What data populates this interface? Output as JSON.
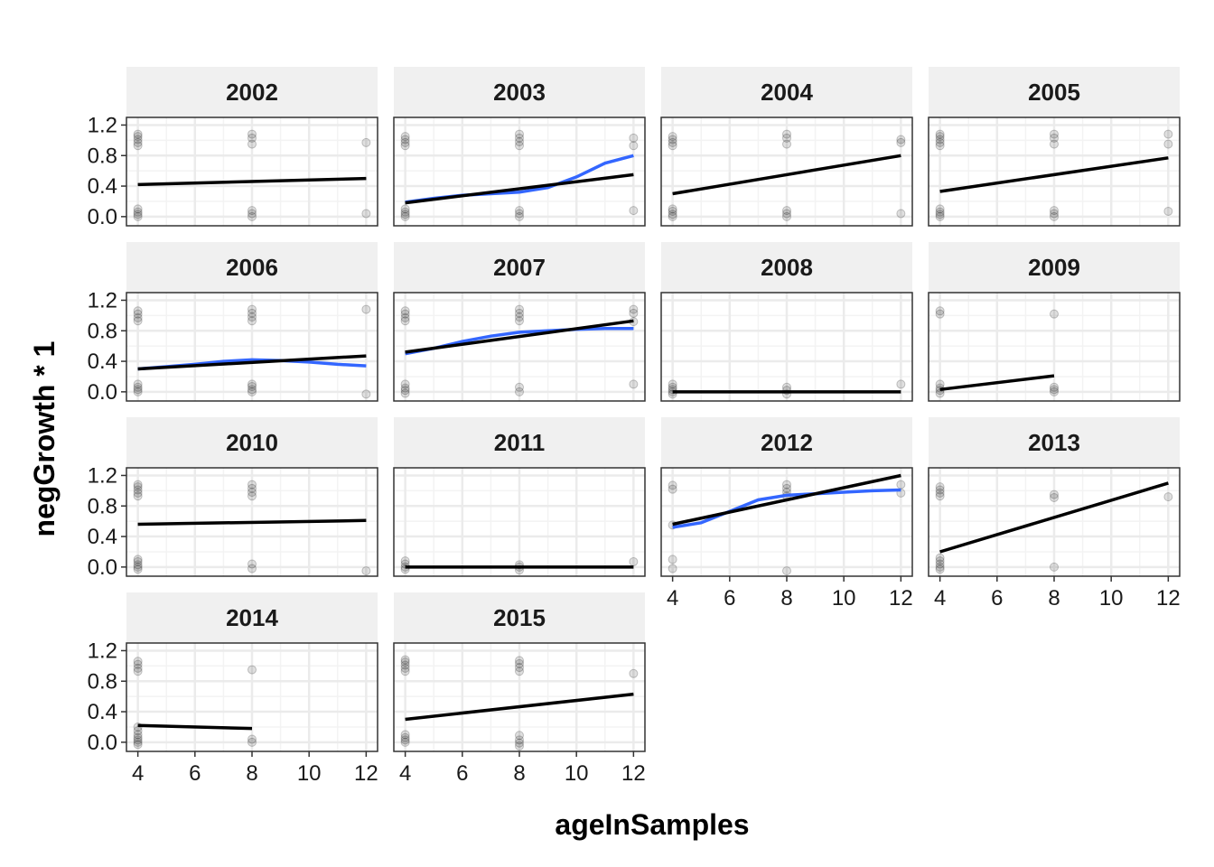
{
  "chart_data": {
    "type": "scatter",
    "xlabel": "ageInSamples",
    "ylabel": "negGrowth * 1",
    "xlim": [
      3.6,
      12.4
    ],
    "ylim": [
      -0.12,
      1.3
    ],
    "x_ticks": [
      4,
      6,
      8,
      10,
      12
    ],
    "x_tick_labels": [
      "4",
      "6",
      "8",
      "10",
      "12"
    ],
    "y_ticks": [
      0,
      0.4,
      0.8,
      1.2
    ],
    "y_tick_labels": [
      "0.0",
      "0.4",
      "0.8",
      "1.2"
    ],
    "grid": true,
    "layout": {
      "rows": 4,
      "cols": 4
    },
    "series_colors": {
      "points": "#000000",
      "linear_fit": "#000000",
      "smooth_fit": "#3366ff"
    },
    "panels": [
      {
        "label": "2002",
        "points": [
          [
            4,
            0
          ],
          [
            4,
            0.03
          ],
          [
            4,
            0.06
          ],
          [
            4,
            0.1
          ],
          [
            4,
            0.93
          ],
          [
            4,
            0.97
          ],
          [
            4,
            1.01
          ],
          [
            4,
            1.05
          ],
          [
            4,
            1.08
          ],
          [
            8,
            0
          ],
          [
            8,
            0.04
          ],
          [
            8,
            0.08
          ],
          [
            8,
            0.95
          ],
          [
            8,
            1.03
          ],
          [
            8,
            1.08
          ],
          [
            12,
            0.04
          ],
          [
            12,
            0.97
          ]
        ],
        "linear": [
          [
            4,
            0.42
          ],
          [
            12,
            0.5
          ]
        ],
        "smooth": null
      },
      {
        "label": "2003",
        "points": [
          [
            4,
            0
          ],
          [
            4,
            0.03
          ],
          [
            4,
            0.06
          ],
          [
            4,
            0.1
          ],
          [
            4,
            0.93
          ],
          [
            4,
            0.97
          ],
          [
            4,
            1.01
          ],
          [
            4,
            1.05
          ],
          [
            8,
            0
          ],
          [
            8,
            0.04
          ],
          [
            8,
            0.08
          ],
          [
            8,
            0.93
          ],
          [
            8,
            0.98
          ],
          [
            8,
            1.03
          ],
          [
            8,
            1.08
          ],
          [
            12,
            0.08
          ],
          [
            12,
            0.93
          ],
          [
            12,
            1.03
          ]
        ],
        "linear": [
          [
            4,
            0.18
          ],
          [
            12,
            0.55
          ]
        ],
        "smooth": [
          [
            4,
            0.19
          ],
          [
            5,
            0.24
          ],
          [
            6,
            0.28
          ],
          [
            7,
            0.3
          ],
          [
            8,
            0.32
          ],
          [
            9,
            0.38
          ],
          [
            10,
            0.52
          ],
          [
            11,
            0.7
          ],
          [
            12,
            0.8
          ]
        ]
      },
      {
        "label": "2004",
        "points": [
          [
            4,
            0
          ],
          [
            4,
            0.03
          ],
          [
            4,
            0.07
          ],
          [
            4,
            0.1
          ],
          [
            4,
            0.93
          ],
          [
            4,
            0.97
          ],
          [
            4,
            1.01
          ],
          [
            4,
            1.05
          ],
          [
            8,
            0
          ],
          [
            8,
            0.04
          ],
          [
            8,
            0.08
          ],
          [
            8,
            0.95
          ],
          [
            8,
            1.03
          ],
          [
            8,
            1.08
          ],
          [
            12,
            0.04
          ],
          [
            12,
            0.97
          ],
          [
            12,
            1.01
          ]
        ],
        "linear": [
          [
            4,
            0.3
          ],
          [
            12,
            0.8
          ]
        ],
        "smooth": null
      },
      {
        "label": "2005",
        "points": [
          [
            4,
            0
          ],
          [
            4,
            0.03
          ],
          [
            4,
            0.06
          ],
          [
            4,
            0.1
          ],
          [
            4,
            0.93
          ],
          [
            4,
            0.97
          ],
          [
            4,
            1.01
          ],
          [
            4,
            1.05
          ],
          [
            4,
            1.08
          ],
          [
            8,
            0
          ],
          [
            8,
            0.04
          ],
          [
            8,
            0.08
          ],
          [
            8,
            0.95
          ],
          [
            8,
            1.03
          ],
          [
            8,
            1.08
          ],
          [
            12,
            0.07
          ],
          [
            12,
            0.95
          ],
          [
            12,
            1.08
          ]
        ],
        "linear": [
          [
            4,
            0.33
          ],
          [
            12,
            0.77
          ]
        ],
        "smooth": null
      },
      {
        "label": "2006",
        "points": [
          [
            4,
            0
          ],
          [
            4,
            0.03
          ],
          [
            4,
            0.06
          ],
          [
            4,
            0.1
          ],
          [
            4,
            0.93
          ],
          [
            4,
            0.97
          ],
          [
            4,
            1.02
          ],
          [
            4,
            1.06
          ],
          [
            8,
            0
          ],
          [
            8,
            0.03
          ],
          [
            8,
            0.07
          ],
          [
            8,
            0.1
          ],
          [
            8,
            0.93
          ],
          [
            8,
            0.98
          ],
          [
            8,
            1.03
          ],
          [
            8,
            1.08
          ],
          [
            12,
            -0.03
          ],
          [
            12,
            1.08
          ]
        ],
        "linear": [
          [
            4,
            0.3
          ],
          [
            12,
            0.47
          ]
        ],
        "smooth": [
          [
            4,
            0.3
          ],
          [
            5,
            0.33
          ],
          [
            6,
            0.36
          ],
          [
            7,
            0.4
          ],
          [
            8,
            0.42
          ],
          [
            9,
            0.41
          ],
          [
            10,
            0.39
          ],
          [
            11,
            0.36
          ],
          [
            12,
            0.34
          ]
        ]
      },
      {
        "label": "2007",
        "points": [
          [
            4,
            -0.02
          ],
          [
            4,
            0.02
          ],
          [
            4,
            0.05
          ],
          [
            4,
            0.1
          ],
          [
            4,
            0.93
          ],
          [
            4,
            0.97
          ],
          [
            4,
            1.02
          ],
          [
            4,
            1.06
          ],
          [
            8,
            0
          ],
          [
            8,
            0.06
          ],
          [
            8,
            0.93
          ],
          [
            8,
            0.98
          ],
          [
            8,
            1.03
          ],
          [
            8,
            1.08
          ],
          [
            12,
            0.1
          ],
          [
            12,
            0.92
          ],
          [
            12,
            1.03
          ],
          [
            12,
            1.08
          ]
        ],
        "linear": [
          [
            4,
            0.52
          ],
          [
            12,
            0.93
          ]
        ],
        "smooth": [
          [
            4,
            0.5
          ],
          [
            5,
            0.57
          ],
          [
            6,
            0.66
          ],
          [
            7,
            0.73
          ],
          [
            8,
            0.78
          ],
          [
            9,
            0.8
          ],
          [
            10,
            0.82
          ],
          [
            11,
            0.83
          ],
          [
            12,
            0.83
          ]
        ]
      },
      {
        "label": "2008",
        "points": [
          [
            4,
            -0.03
          ],
          [
            4,
            0
          ],
          [
            4,
            0.03
          ],
          [
            4,
            0.06
          ],
          [
            4,
            0.1
          ],
          [
            8,
            -0.03
          ],
          [
            8,
            0.02
          ],
          [
            8,
            0.06
          ],
          [
            12,
            0.1
          ]
        ],
        "linear": [
          [
            4,
            0
          ],
          [
            12,
            0
          ]
        ],
        "smooth": null
      },
      {
        "label": "2009",
        "points": [
          [
            4,
            -0.02
          ],
          [
            4,
            0.02
          ],
          [
            4,
            0.05
          ],
          [
            4,
            0.1
          ],
          [
            4,
            1.02
          ],
          [
            4,
            1.06
          ],
          [
            8,
            0
          ],
          [
            8,
            0.03
          ],
          [
            8,
            0.06
          ],
          [
            8,
            1.02
          ]
        ],
        "linear": [
          [
            4,
            0.03
          ],
          [
            8,
            0.21
          ]
        ],
        "smooth": null
      },
      {
        "label": "2010",
        "points": [
          [
            4,
            -0.03
          ],
          [
            4,
            0
          ],
          [
            4,
            0.03
          ],
          [
            4,
            0.07
          ],
          [
            4,
            0.1
          ],
          [
            4,
            0.93
          ],
          [
            4,
            0.97
          ],
          [
            4,
            1.01
          ],
          [
            4,
            1.05
          ],
          [
            4,
            1.08
          ],
          [
            8,
            -0.02
          ],
          [
            8,
            0.04
          ],
          [
            8,
            0.93
          ],
          [
            8,
            0.98
          ],
          [
            8,
            1.03
          ],
          [
            8,
            1.08
          ],
          [
            12,
            -0.05
          ]
        ],
        "linear": [
          [
            4,
            0.56
          ],
          [
            12,
            0.61
          ]
        ],
        "smooth": null
      },
      {
        "label": "2011",
        "points": [
          [
            4,
            -0.03
          ],
          [
            4,
            0
          ],
          [
            4,
            0.04
          ],
          [
            4,
            0.08
          ],
          [
            8,
            -0.04
          ],
          [
            8,
            0
          ],
          [
            8,
            0.03
          ],
          [
            12,
            0.07
          ]
        ],
        "linear": [
          [
            4,
            0
          ],
          [
            12,
            0
          ]
        ],
        "smooth": null
      },
      {
        "label": "2012",
        "points": [
          [
            4,
            -0.02
          ],
          [
            4,
            0.1
          ],
          [
            4,
            0.55
          ],
          [
            4,
            1.02
          ],
          [
            4,
            1.07
          ],
          [
            8,
            -0.05
          ],
          [
            8,
            0.93
          ],
          [
            8,
            0.98
          ],
          [
            8,
            1.03
          ],
          [
            8,
            1.08
          ],
          [
            12,
            0.97
          ],
          [
            12,
            1.08
          ]
        ],
        "linear": [
          [
            4,
            0.56
          ],
          [
            12,
            1.2
          ]
        ],
        "smooth": [
          [
            4,
            0.52
          ],
          [
            5,
            0.58
          ],
          [
            6,
            0.73
          ],
          [
            7,
            0.88
          ],
          [
            8,
            0.94
          ],
          [
            9,
            0.96
          ],
          [
            10,
            0.98
          ],
          [
            11,
            1
          ],
          [
            12,
            1.01
          ]
        ]
      },
      {
        "label": "2013",
        "points": [
          [
            4,
            -0.03
          ],
          [
            4,
            0
          ],
          [
            4,
            0.04
          ],
          [
            4,
            0.08
          ],
          [
            4,
            0.12
          ],
          [
            4,
            0.93
          ],
          [
            4,
            0.97
          ],
          [
            4,
            1.01
          ],
          [
            4,
            1.05
          ],
          [
            8,
            0
          ],
          [
            8,
            0.91
          ],
          [
            8,
            0.95
          ],
          [
            12,
            0.92
          ]
        ],
        "linear": [
          [
            4,
            0.2
          ],
          [
            12,
            1.1
          ]
        ],
        "smooth": null
      },
      {
        "label": "2014",
        "points": [
          [
            4,
            -0.03
          ],
          [
            4,
            0
          ],
          [
            4,
            0.03
          ],
          [
            4,
            0.06
          ],
          [
            4,
            0.1
          ],
          [
            4,
            0.15
          ],
          [
            4,
            0.2
          ],
          [
            4,
            0.93
          ],
          [
            4,
            0.97
          ],
          [
            4,
            1.02
          ],
          [
            4,
            1.06
          ],
          [
            8,
            0
          ],
          [
            8,
            0.04
          ],
          [
            8,
            0.95
          ]
        ],
        "linear": [
          [
            4,
            0.22
          ],
          [
            8,
            0.18
          ]
        ],
        "smooth": null
      },
      {
        "label": "2015",
        "points": [
          [
            4,
            0
          ],
          [
            4,
            0.03
          ],
          [
            4,
            0.06
          ],
          [
            4,
            0.1
          ],
          [
            4,
            0.93
          ],
          [
            4,
            0.97
          ],
          [
            4,
            1.01
          ],
          [
            4,
            1.05
          ],
          [
            4,
            1.08
          ],
          [
            8,
            -0.05
          ],
          [
            8,
            -0.01
          ],
          [
            8,
            0.03
          ],
          [
            8,
            0.09
          ],
          [
            8,
            0.93
          ],
          [
            8,
            0.98
          ],
          [
            8,
            1.03
          ],
          [
            8,
            1.07
          ],
          [
            12,
            0.9
          ]
        ],
        "linear": [
          [
            4,
            0.3
          ],
          [
            12,
            0.63
          ]
        ],
        "smooth": null
      }
    ]
  }
}
